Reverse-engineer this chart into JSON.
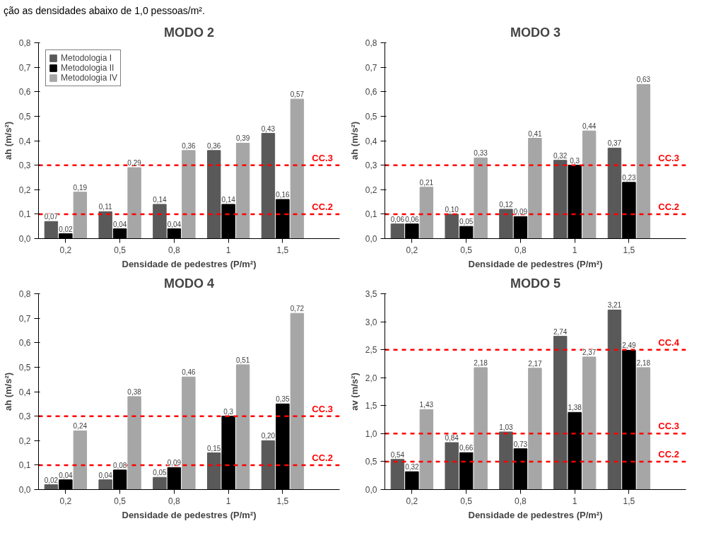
{
  "chart_data": [
    {
      "type": "bar",
      "title": "MODO 2",
      "xlabel": "Densidade de pedestres (P/m²)",
      "ylabel": "ah (m/s²)",
      "annotations": [
        "ção as densidades abaixo de 1,0 pessoas/m²."
      ],
      "categories": [
        "0,2",
        "0,5",
        "0,8",
        "1",
        "1,5"
      ],
      "legend": "top left",
      "ylim": [
        0,
        0.8
      ],
      "yticks": [
        {
          "value": 0,
          "label": "0,0"
        },
        {
          "value": 0.1,
          "label": "0,1"
        },
        {
          "value": 0.2,
          "label": "0,2"
        },
        {
          "value": 0.3,
          "label": "0,3"
        },
        {
          "value": 0.4,
          "label": "0,4"
        },
        {
          "value": 0.5,
          "label": "0,5"
        },
        {
          "value": 0.6,
          "label": "0,6"
        },
        {
          "value": 0.7,
          "label": "0,7"
        },
        {
          "value": 0.8,
          "label": "0,8"
        }
      ],
      "series": [
        {
          "name": "Metodologia I",
          "color": "#595959",
          "values": [
            0.07,
            0.11,
            0.14,
            0.36,
            0.43
          ],
          "value_labels": [
            "0,07",
            "0,11",
            "0,14",
            "0,36",
            "0,43"
          ]
        },
        {
          "name": "Metodologia II",
          "color": "#000000",
          "values": [
            0.02,
            0.04,
            0.04,
            0.14,
            0.16
          ],
          "value_labels": [
            "0,02",
            "0,04",
            "0,04",
            "0,14",
            "0,16"
          ]
        },
        {
          "name": "Metodologia IV",
          "color": "#a6a6a6",
          "values": [
            0.19,
            0.29,
            0.36,
            0.39,
            0.57
          ],
          "value_labels": [
            "0,19",
            "0,29",
            "0,36",
            "0,39",
            "0,57"
          ]
        }
      ],
      "ref_lines": [
        {
          "axis": "y",
          "value": 0.1,
          "label": "CC.2",
          "color": "#ff0000",
          "line_style": "dashed"
        },
        {
          "axis": "y",
          "value": 0.3,
          "label": "CC.3",
          "color": "#ff0000",
          "line_style": "dashed"
        }
      ]
    },
    {
      "type": "bar",
      "title": "MODO 3",
      "xlabel": "Densidade de pedestres (P/m²)",
      "ylabel": "ah (m/s²)",
      "categories": [
        "0,2",
        "0,5",
        "0,8",
        "1",
        "1,5"
      ],
      "ylim": [
        0,
        0.8
      ],
      "yticks": [
        {
          "value": 0,
          "label": "0,0"
        },
        {
          "value": 0.1,
          "label": "0,1"
        },
        {
          "value": 0.2,
          "label": "0,2"
        },
        {
          "value": 0.3,
          "label": "0,3"
        },
        {
          "value": 0.4,
          "label": "0,4"
        },
        {
          "value": 0.5,
          "label": "0,5"
        },
        {
          "value": 0.6,
          "label": "0,6"
        },
        {
          "value": 0.7,
          "label": "0,7"
        },
        {
          "value": 0.8,
          "label": "0,8"
        }
      ],
      "series": [
        {
          "color": "#595959",
          "values": [
            0.06,
            0.1,
            0.12,
            0.32,
            0.37
          ],
          "value_labels": [
            "0,06",
            "0,10",
            "0,12",
            "0,32",
            "0,37"
          ]
        },
        {
          "color": "#000000",
          "values": [
            0.06,
            0.05,
            0.09,
            0.3,
            0.23
          ],
          "value_labels": [
            "0,06",
            "0,05",
            "0,09",
            "0,3",
            "0,23"
          ]
        },
        {
          "color": "#a6a6a6",
          "values": [
            0.21,
            0.33,
            0.41,
            0.44,
            0.63
          ],
          "value_labels": [
            "0,21",
            "0,33",
            "0,41",
            "0,44",
            "0,63"
          ]
        }
      ],
      "ref_lines": [
        {
          "axis": "y",
          "value": 0.1,
          "label": "CC.2",
          "color": "#ff0000",
          "line_style": "dashed"
        },
        {
          "axis": "y",
          "value": 0.3,
          "label": "CC.3",
          "color": "#ff0000",
          "line_style": "dashed"
        }
      ]
    },
    {
      "type": "bar",
      "title": "MODO 4",
      "xlabel": "Densidade de pedestres (P/m²)",
      "ylabel": "ah (m/s²)",
      "categories": [
        "0,2",
        "0,5",
        "0,8",
        "1",
        "1,5"
      ],
      "ylim": [
        0,
        0.8
      ],
      "yticks": [
        {
          "value": 0,
          "label": "0,0"
        },
        {
          "value": 0.1,
          "label": "0,1"
        },
        {
          "value": 0.2,
          "label": "0,2"
        },
        {
          "value": 0.3,
          "label": "0,3"
        },
        {
          "value": 0.4,
          "label": "0,4"
        },
        {
          "value": 0.5,
          "label": "0,5"
        },
        {
          "value": 0.6,
          "label": "0,6"
        },
        {
          "value": 0.7,
          "label": "0,7"
        },
        {
          "value": 0.8,
          "label": "0,8"
        }
      ],
      "series": [
        {
          "color": "#595959",
          "values": [
            0.02,
            0.04,
            0.05,
            0.15,
            0.2
          ],
          "value_labels": [
            "0,02",
            "0,04",
            "0,05",
            "0,15",
            "0,20"
          ]
        },
        {
          "color": "#000000",
          "values": [
            0.04,
            0.08,
            0.09,
            0.3,
            0.35
          ],
          "value_labels": [
            "0,04",
            "0,08",
            "0,09",
            "0,3",
            "0,35"
          ]
        },
        {
          "color": "#a6a6a6",
          "values": [
            0.24,
            0.38,
            0.46,
            0.51,
            0.72
          ],
          "value_labels": [
            "0,24",
            "0,38",
            "0,46",
            "0,51",
            "0,72"
          ]
        }
      ],
      "ref_lines": [
        {
          "axis": "y",
          "value": 0.1,
          "label": "CC.2",
          "color": "#ff0000",
          "line_style": "dashed"
        },
        {
          "axis": "y",
          "value": 0.3,
          "label": "CC.3",
          "color": "#ff0000",
          "line_style": "dashed"
        }
      ]
    },
    {
      "type": "bar",
      "title": "MODO 5",
      "xlabel": "Densidade de pedestres (P/m²)",
      "ylabel": "av (m/s²)",
      "categories": [
        "0,2",
        "0,5",
        "0,8",
        "1",
        "1,5"
      ],
      "ylim": [
        0,
        3.5
      ],
      "yticks": [
        {
          "value": 0,
          "label": "0,0"
        },
        {
          "value": 0.5,
          "label": "0,5"
        },
        {
          "value": 1,
          "label": "1,0"
        },
        {
          "value": 1.5,
          "label": "1,5"
        },
        {
          "value": 2,
          "label": "2,0"
        },
        {
          "value": 2.5,
          "label": "2,5"
        },
        {
          "value": 3,
          "label": "3,0"
        },
        {
          "value": 3.5,
          "label": "3,5"
        }
      ],
      "series": [
        {
          "color": "#595959",
          "values": [
            0.54,
            0.84,
            1.03,
            2.74,
            3.21
          ],
          "value_labels": [
            "0,54",
            "0,84",
            "1,03",
            "2,74",
            "3,21"
          ]
        },
        {
          "color": "#000000",
          "values": [
            0.32,
            0.66,
            0.73,
            1.38,
            2.49
          ],
          "value_labels": [
            "0,32",
            "0,66",
            "0,73",
            "1,38",
            "2,49"
          ]
        },
        {
          "color": "#a6a6a6",
          "values": [
            1.43,
            2.18,
            2.17,
            2.37,
            2.18
          ],
          "value_labels": [
            "1,43",
            "2,18",
            "2,17",
            "2,37",
            "2,18"
          ]
        }
      ],
      "ref_lines": [
        {
          "axis": "y",
          "value": 0.5,
          "label": "CC.2",
          "color": "#ff0000",
          "line_style": "dashed"
        },
        {
          "axis": "y",
          "value": 1.0,
          "label": "CC.3",
          "color": "#ff0000",
          "line_style": "dashed"
        },
        {
          "axis": "y",
          "value": 2.5,
          "label": "CC.4",
          "color": "#ff0000",
          "line_style": "dashed"
        }
      ]
    }
  ]
}
